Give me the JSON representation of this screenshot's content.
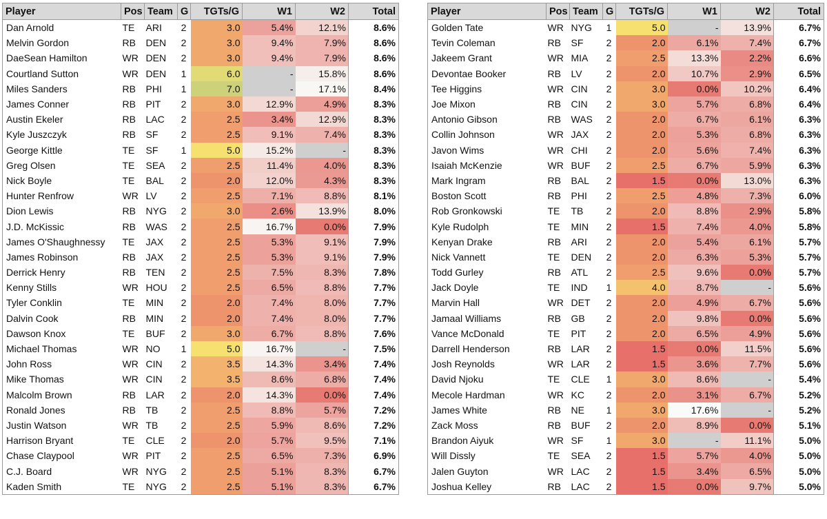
{
  "headers": {
    "player": "Player",
    "pos": "Pos",
    "team": "Team",
    "g": "G",
    "tgts": "TGTs/G",
    "w1": "W1",
    "w2": "W2",
    "total": "Total"
  },
  "left": [
    [
      "Dan Arnold",
      "TE",
      "ARI",
      "2",
      "3.0",
      "5.4%",
      "12.1%",
      "8.6%"
    ],
    [
      "Melvin Gordon",
      "RB",
      "DEN",
      "2",
      "3.0",
      "9.4%",
      "7.9%",
      "8.6%"
    ],
    [
      "DaeSean Hamilton",
      "WR",
      "DEN",
      "2",
      "3.0",
      "9.4%",
      "7.9%",
      "8.6%"
    ],
    [
      "Courtland Sutton",
      "WR",
      "DEN",
      "1",
      "6.0",
      "-",
      "15.8%",
      "8.6%"
    ],
    [
      "Miles Sanders",
      "RB",
      "PHI",
      "1",
      "7.0",
      "-",
      "17.1%",
      "8.4%"
    ],
    [
      "James Conner",
      "RB",
      "PIT",
      "2",
      "3.0",
      "12.9%",
      "4.9%",
      "8.3%"
    ],
    [
      "Austin Ekeler",
      "RB",
      "LAC",
      "2",
      "2.5",
      "3.4%",
      "12.9%",
      "8.3%"
    ],
    [
      "Kyle Juszczyk",
      "RB",
      "SF",
      "2",
      "2.5",
      "9.1%",
      "7.4%",
      "8.3%"
    ],
    [
      "George Kittle",
      "TE",
      "SF",
      "1",
      "5.0",
      "15.2%",
      "-",
      "8.3%"
    ],
    [
      "Greg Olsen",
      "TE",
      "SEA",
      "2",
      "2.5",
      "11.4%",
      "4.0%",
      "8.3%"
    ],
    [
      "Nick Boyle",
      "TE",
      "BAL",
      "2",
      "2.0",
      "12.0%",
      "4.3%",
      "8.3%"
    ],
    [
      "Hunter Renfrow",
      "WR",
      "LV",
      "2",
      "2.5",
      "7.1%",
      "8.8%",
      "8.1%"
    ],
    [
      "Dion Lewis",
      "RB",
      "NYG",
      "2",
      "3.0",
      "2.6%",
      "13.9%",
      "8.0%"
    ],
    [
      "J.D. McKissic",
      "RB",
      "WAS",
      "2",
      "2.5",
      "16.7%",
      "0.0%",
      "7.9%"
    ],
    [
      "James O'Shaughnessy",
      "TE",
      "JAX",
      "2",
      "2.5",
      "5.3%",
      "9.1%",
      "7.9%"
    ],
    [
      "James Robinson",
      "RB",
      "JAX",
      "2",
      "2.5",
      "5.3%",
      "9.1%",
      "7.9%"
    ],
    [
      "Derrick Henry",
      "RB",
      "TEN",
      "2",
      "2.5",
      "7.5%",
      "8.3%",
      "7.8%"
    ],
    [
      "Kenny Stills",
      "WR",
      "HOU",
      "2",
      "2.5",
      "6.5%",
      "8.8%",
      "7.7%"
    ],
    [
      "Tyler Conklin",
      "TE",
      "MIN",
      "2",
      "2.0",
      "7.4%",
      "8.0%",
      "7.7%"
    ],
    [
      "Dalvin Cook",
      "RB",
      "MIN",
      "2",
      "2.0",
      "7.4%",
      "8.0%",
      "7.7%"
    ],
    [
      "Dawson Knox",
      "TE",
      "BUF",
      "2",
      "3.0",
      "6.7%",
      "8.8%",
      "7.6%"
    ],
    [
      "Michael Thomas",
      "WR",
      "NO",
      "1",
      "5.0",
      "16.7%",
      "-",
      "7.5%"
    ],
    [
      "John Ross",
      "WR",
      "CIN",
      "2",
      "3.5",
      "14.3%",
      "3.4%",
      "7.4%"
    ],
    [
      "Mike Thomas",
      "WR",
      "CIN",
      "2",
      "3.5",
      "8.6%",
      "6.8%",
      "7.4%"
    ],
    [
      "Malcolm Brown",
      "RB",
      "LAR",
      "2",
      "2.0",
      "14.3%",
      "0.0%",
      "7.4%"
    ],
    [
      "Ronald Jones",
      "RB",
      "TB",
      "2",
      "2.5",
      "8.8%",
      "5.7%",
      "7.2%"
    ],
    [
      "Justin Watson",
      "WR",
      "TB",
      "2",
      "2.5",
      "5.9%",
      "8.6%",
      "7.2%"
    ],
    [
      "Harrison Bryant",
      "TE",
      "CLE",
      "2",
      "2.0",
      "5.7%",
      "9.5%",
      "7.1%"
    ],
    [
      "Chase Claypool",
      "WR",
      "PIT",
      "2",
      "2.5",
      "6.5%",
      "7.3%",
      "6.9%"
    ],
    [
      "C.J. Board",
      "WR",
      "NYG",
      "2",
      "2.5",
      "5.1%",
      "8.3%",
      "6.7%"
    ],
    [
      "Kaden Smith",
      "TE",
      "NYG",
      "2",
      "2.5",
      "5.1%",
      "8.3%",
      "6.7%"
    ]
  ],
  "right": [
    [
      "Golden Tate",
      "WR",
      "NYG",
      "1",
      "5.0",
      "-",
      "13.9%",
      "6.7%"
    ],
    [
      "Tevin Coleman",
      "RB",
      "SF",
      "2",
      "2.0",
      "6.1%",
      "7.4%",
      "6.7%"
    ],
    [
      "Jakeem Grant",
      "WR",
      "MIA",
      "2",
      "2.5",
      "13.3%",
      "2.2%",
      "6.6%"
    ],
    [
      "Devontae Booker",
      "RB",
      "LV",
      "2",
      "2.0",
      "10.7%",
      "2.9%",
      "6.5%"
    ],
    [
      "Tee Higgins",
      "WR",
      "CIN",
      "2",
      "3.0",
      "0.0%",
      "10.2%",
      "6.4%"
    ],
    [
      "Joe Mixon",
      "RB",
      "CIN",
      "2",
      "3.0",
      "5.7%",
      "6.8%",
      "6.4%"
    ],
    [
      "Antonio Gibson",
      "RB",
      "WAS",
      "2",
      "2.0",
      "6.7%",
      "6.1%",
      "6.3%"
    ],
    [
      "Collin Johnson",
      "WR",
      "JAX",
      "2",
      "2.0",
      "5.3%",
      "6.8%",
      "6.3%"
    ],
    [
      "Javon Wims",
      "WR",
      "CHI",
      "2",
      "2.0",
      "5.6%",
      "7.4%",
      "6.3%"
    ],
    [
      "Isaiah McKenzie",
      "WR",
      "BUF",
      "2",
      "2.5",
      "6.7%",
      "5.9%",
      "6.3%"
    ],
    [
      "Mark Ingram",
      "RB",
      "BAL",
      "2",
      "1.5",
      "0.0%",
      "13.0%",
      "6.3%"
    ],
    [
      "Boston Scott",
      "RB",
      "PHI",
      "2",
      "2.5",
      "4.8%",
      "7.3%",
      "6.0%"
    ],
    [
      "Rob Gronkowski",
      "TE",
      "TB",
      "2",
      "2.0",
      "8.8%",
      "2.9%",
      "5.8%"
    ],
    [
      "Kyle Rudolph",
      "TE",
      "MIN",
      "2",
      "1.5",
      "7.4%",
      "4.0%",
      "5.8%"
    ],
    [
      "Kenyan Drake",
      "RB",
      "ARI",
      "2",
      "2.0",
      "5.4%",
      "6.1%",
      "5.7%"
    ],
    [
      "Nick Vannett",
      "TE",
      "DEN",
      "2",
      "2.0",
      "6.3%",
      "5.3%",
      "5.7%"
    ],
    [
      "Todd Gurley",
      "RB",
      "ATL",
      "2",
      "2.5",
      "9.6%",
      "0.0%",
      "5.7%"
    ],
    [
      "Jack Doyle",
      "TE",
      "IND",
      "1",
      "4.0",
      "8.7%",
      "-",
      "5.6%"
    ],
    [
      "Marvin Hall",
      "WR",
      "DET",
      "2",
      "2.0",
      "4.9%",
      "6.7%",
      "5.6%"
    ],
    [
      "Jamaal Williams",
      "RB",
      "GB",
      "2",
      "2.0",
      "9.8%",
      "0.0%",
      "5.6%"
    ],
    [
      "Vance McDonald",
      "TE",
      "PIT",
      "2",
      "2.0",
      "6.5%",
      "4.9%",
      "5.6%"
    ],
    [
      "Darrell Henderson",
      "RB",
      "LAR",
      "2",
      "1.5",
      "0.0%",
      "11.5%",
      "5.6%"
    ],
    [
      "Josh Reynolds",
      "WR",
      "LAR",
      "2",
      "1.5",
      "3.6%",
      "7.7%",
      "5.6%"
    ],
    [
      "David Njoku",
      "TE",
      "CLE",
      "1",
      "3.0",
      "8.6%",
      "-",
      "5.4%"
    ],
    [
      "Mecole Hardman",
      "WR",
      "KC",
      "2",
      "2.0",
      "3.1%",
      "6.7%",
      "5.2%"
    ],
    [
      "James White",
      "RB",
      "NE",
      "1",
      "3.0",
      "17.6%",
      "-",
      "5.2%"
    ],
    [
      "Zack Moss",
      "RB",
      "BUF",
      "2",
      "2.0",
      "8.9%",
      "0.0%",
      "5.1%"
    ],
    [
      "Brandon Aiyuk",
      "WR",
      "SF",
      "1",
      "3.0",
      "-",
      "11.1%",
      "5.0%"
    ],
    [
      "Will Dissly",
      "TE",
      "SEA",
      "2",
      "1.5",
      "5.7%",
      "4.0%",
      "5.0%"
    ],
    [
      "Jalen Guyton",
      "WR",
      "LAC",
      "2",
      "1.5",
      "3.4%",
      "6.5%",
      "5.0%"
    ],
    [
      "Joshua Kelley",
      "RB",
      "LAC",
      "2",
      "1.5",
      "0.0%",
      "9.7%",
      "5.0%"
    ]
  ],
  "colors": {
    "header_bg": "#d9d9d9",
    "grid": "#9a9a9a",
    "missing_cell": "#cfcfcf",
    "tgt_low": "#e8706a",
    "tgt_mid": "#f3b26e",
    "tgt_high": "#f6e170",
    "tgt_top": "#cdd27a",
    "pct_low": "#e77b73",
    "pct_high": "#f8fbf8"
  }
}
